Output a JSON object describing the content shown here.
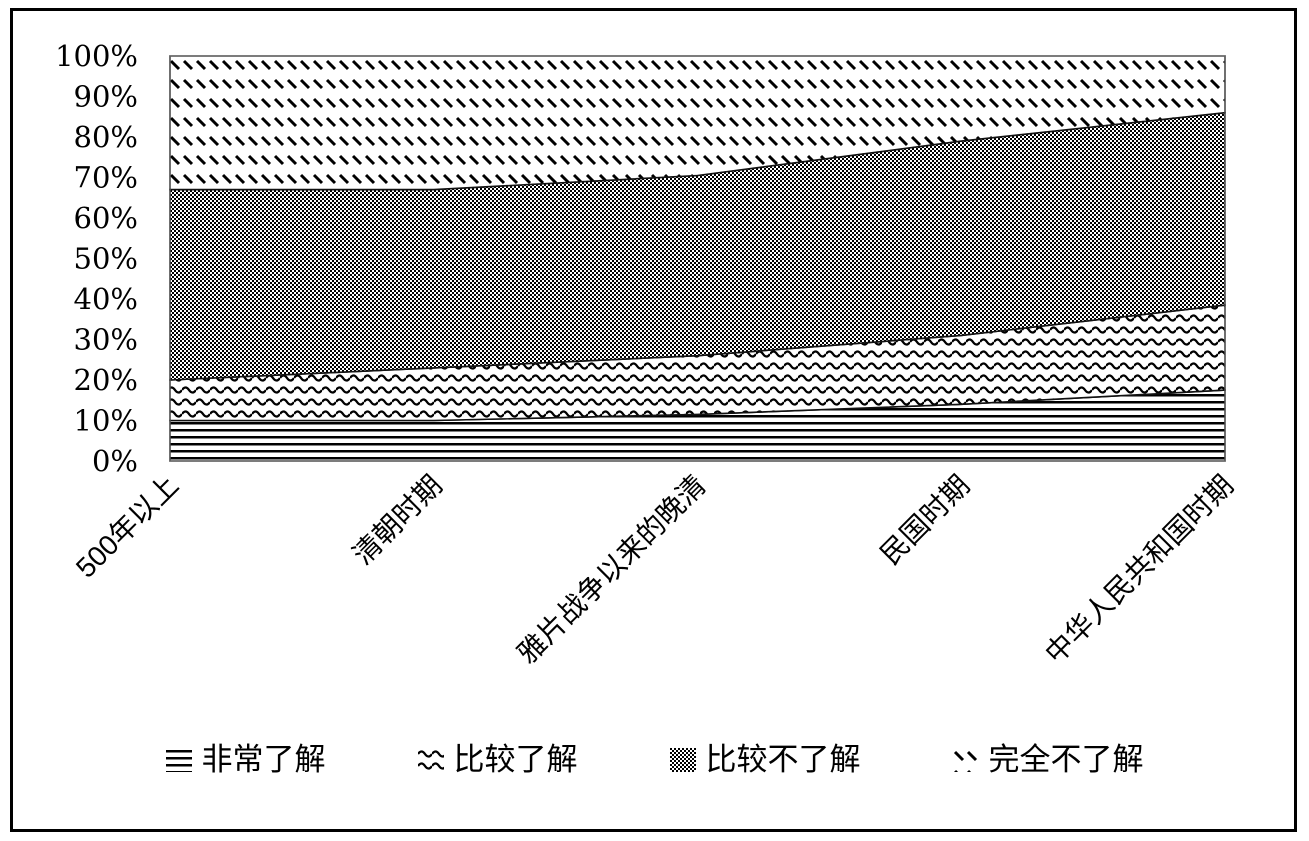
{
  "figure": {
    "background": "#ffffff",
    "frame_color": "#000000",
    "pattern_foreground": "#000000",
    "pattern_background": "#ffffff"
  },
  "chart_data": {
    "type": "area",
    "subtype": "stacked-100-percent",
    "title": "",
    "xlabel": "",
    "ylabel": "",
    "categories": [
      "500年以上",
      "清朝时期",
      "雅片战争以来的晚清",
      "民国时期",
      "中华人民共和国时期"
    ],
    "series": [
      {
        "name": "非常了解",
        "pattern": "hlines",
        "values": [
          10,
          10,
          11.5,
          14,
          17.5
        ]
      },
      {
        "name": "比较了解",
        "pattern": "waves",
        "values": [
          10,
          13,
          14.5,
          17,
          21
        ]
      },
      {
        "name": "比较不了解",
        "pattern": "checker",
        "values": [
          47,
          44,
          44.5,
          48,
          47.5
        ]
      },
      {
        "name": "完全不了解",
        "pattern": "diagonal",
        "values": [
          33,
          33,
          29.5,
          21,
          14
        ]
      }
    ],
    "y_ticks": [
      "0%",
      "10%",
      "20%",
      "30%",
      "40%",
      "50%",
      "60%",
      "70%",
      "80%",
      "90%",
      "100%"
    ],
    "ylim": [
      0,
      100
    ],
    "y_unit": "percent",
    "grid": false,
    "legend_position": "bottom"
  }
}
